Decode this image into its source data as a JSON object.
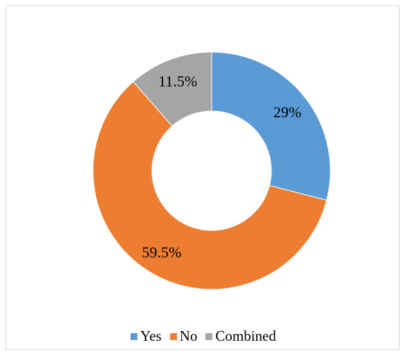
{
  "chart_data": {
    "type": "pie",
    "variant": "donut",
    "title": "",
    "slices": [
      {
        "label": "Yes",
        "value": 29,
        "display": "29%",
        "color": "#5b9bd5"
      },
      {
        "label": "No",
        "value": 59.5,
        "display": "59.5%",
        "color": "#ed7d31"
      },
      {
        "label": "Combined",
        "value": 11.5,
        "display": "11.5%",
        "color": "#a5a5a5"
      }
    ],
    "legend_position": "bottom"
  }
}
